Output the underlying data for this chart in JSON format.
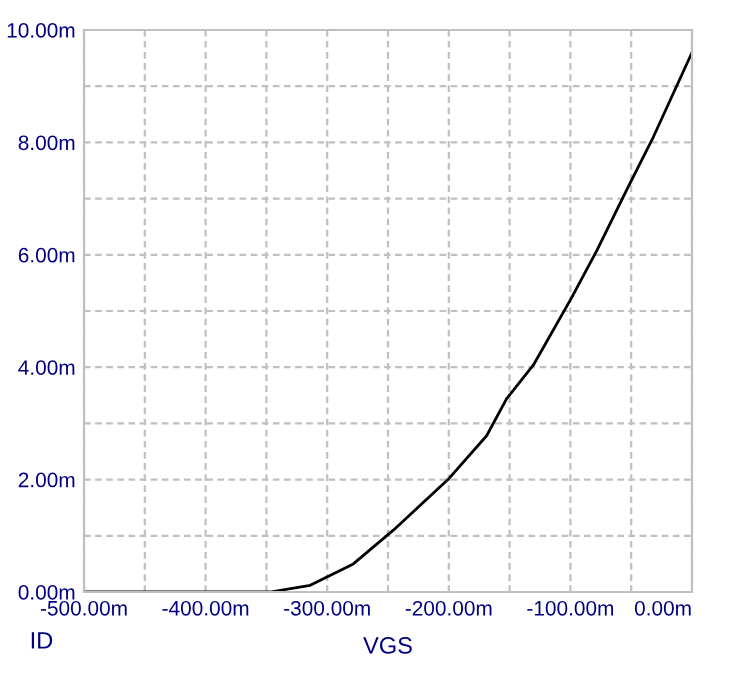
{
  "chart_data": {
    "type": "line",
    "xlabel": "VGS",
    "ylabel": "ID",
    "x": [
      -500,
      -347,
      -314,
      -278.5,
      -245.6,
      -200.7,
      -168.9,
      -152.4,
      -130.4,
      -99.2,
      -78.4,
      -53.8,
      -31.7,
      0
    ],
    "series": [
      {
        "color": "#000000",
        "values": [
          0,
          0,
          0.12,
          0.5,
          1.1,
          2.0,
          2.78,
          3.44,
          4.04,
          5.23,
          6.07,
          7.15,
          8.1,
          9.6
        ]
      }
    ],
    "xlim": [
      -500,
      0
    ],
    "xticks": [
      {
        "value": -500,
        "label": "-500.00m"
      },
      {
        "value": -450,
        "label": null
      },
      {
        "value": -400,
        "label": "-400.00m"
      },
      {
        "value": -350,
        "label": null
      },
      {
        "value": -300,
        "label": "-300.00m"
      },
      {
        "value": -250,
        "label": null
      },
      {
        "value": -200,
        "label": "-200.00m"
      },
      {
        "value": -150,
        "label": null
      },
      {
        "value": -100,
        "label": "-100.00m"
      },
      {
        "value": -50,
        "label": null
      },
      {
        "value": 0,
        "label": "0.00m"
      }
    ],
    "ylim": [
      0,
      10
    ],
    "yticks": [
      {
        "value": 0,
        "label": "0.00m"
      },
      {
        "value": 1,
        "label": null
      },
      {
        "value": 2,
        "label": "2.00m"
      },
      {
        "value": 3,
        "label": null
      },
      {
        "value": 4,
        "label": "4.00m"
      },
      {
        "value": 5,
        "label": null
      },
      {
        "value": 6,
        "label": "6.00m"
      },
      {
        "value": 7,
        "label": null
      },
      {
        "value": 8,
        "label": "8.00m"
      },
      {
        "value": 9,
        "label": null
      },
      {
        "value": 10,
        "label": "10.00m"
      }
    ],
    "grid": true,
    "marker": "none",
    "line_style": "solid",
    "legend": false
  }
}
